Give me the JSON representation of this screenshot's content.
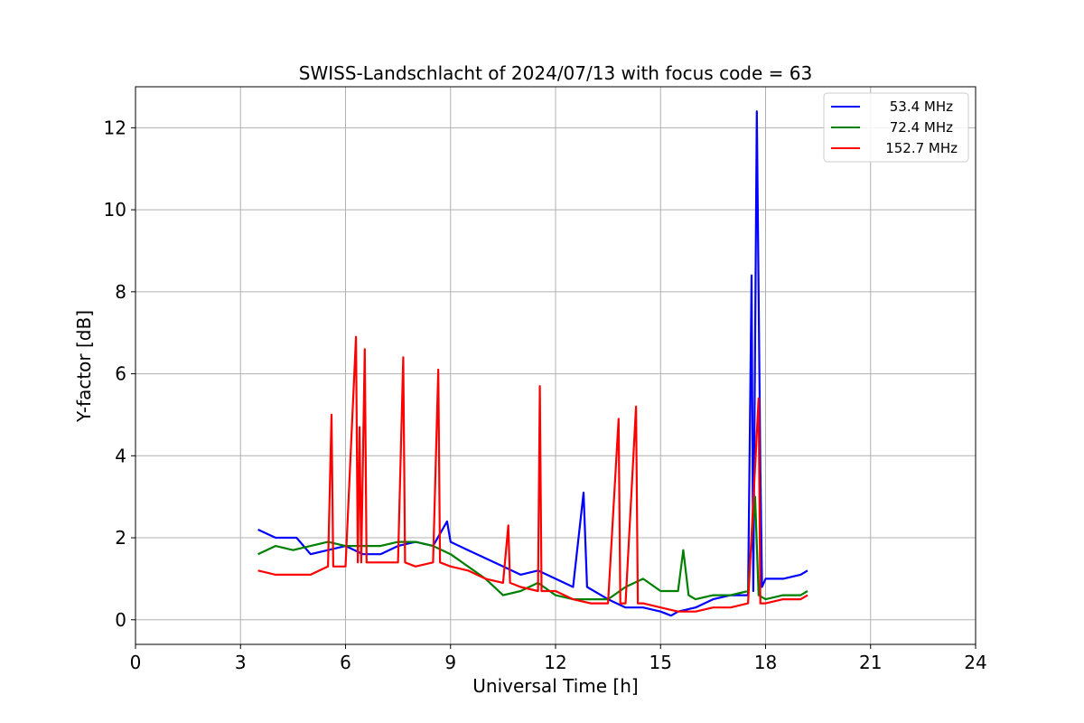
{
  "chart_data": {
    "type": "line",
    "title": "SWISS-Landschlacht of 2024/07/13 with focus code = 63",
    "xlabel": "Universal Time [h]",
    "ylabel": "Y-factor [dB]",
    "xlim": [
      0,
      24
    ],
    "ylim": [
      -0.6,
      13.0
    ],
    "xticks": [
      0,
      3,
      6,
      9,
      12,
      15,
      18,
      21,
      24
    ],
    "yticks": [
      0,
      2,
      4,
      6,
      8,
      10,
      12
    ],
    "grid": true,
    "legend_position": "top-right",
    "series": [
      {
        "name": "53.4 MHz",
        "color": "#0000ff",
        "points": [
          [
            3.5,
            2.2
          ],
          [
            4.0,
            2.0
          ],
          [
            4.6,
            2.0
          ],
          [
            5.0,
            1.6
          ],
          [
            5.5,
            1.7
          ],
          [
            6.0,
            1.8
          ],
          [
            6.5,
            1.6
          ],
          [
            7.0,
            1.6
          ],
          [
            7.5,
            1.8
          ],
          [
            8.0,
            1.9
          ],
          [
            8.5,
            1.8
          ],
          [
            8.9,
            2.4
          ],
          [
            9.0,
            1.9
          ],
          [
            9.5,
            1.7
          ],
          [
            10.0,
            1.5
          ],
          [
            10.5,
            1.3
          ],
          [
            11.0,
            1.1
          ],
          [
            11.5,
            1.2
          ],
          [
            12.0,
            1.0
          ],
          [
            12.5,
            0.8
          ],
          [
            12.8,
            3.1
          ],
          [
            12.9,
            0.8
          ],
          [
            13.5,
            0.5
          ],
          [
            14.0,
            0.3
          ],
          [
            14.5,
            0.3
          ],
          [
            15.0,
            0.2
          ],
          [
            15.3,
            0.1
          ],
          [
            15.5,
            0.2
          ],
          [
            16.0,
            0.3
          ],
          [
            16.5,
            0.5
          ],
          [
            17.0,
            0.6
          ],
          [
            17.5,
            0.6
          ],
          [
            17.6,
            8.4
          ],
          [
            17.65,
            0.7
          ],
          [
            17.75,
            12.4
          ],
          [
            17.85,
            3.7
          ],
          [
            17.9,
            0.8
          ],
          [
            18.0,
            1.0
          ],
          [
            18.5,
            1.0
          ],
          [
            19.0,
            1.1
          ],
          [
            19.2,
            1.2
          ]
        ]
      },
      {
        "name": "72.4 MHz",
        "color": "#008000",
        "points": [
          [
            3.5,
            1.6
          ],
          [
            4.0,
            1.8
          ],
          [
            4.5,
            1.7
          ],
          [
            5.0,
            1.8
          ],
          [
            5.5,
            1.9
          ],
          [
            6.0,
            1.8
          ],
          [
            6.5,
            1.8
          ],
          [
            7.0,
            1.8
          ],
          [
            7.5,
            1.9
          ],
          [
            8.0,
            1.9
          ],
          [
            8.5,
            1.8
          ],
          [
            9.0,
            1.6
          ],
          [
            9.5,
            1.3
          ],
          [
            10.0,
            1.0
          ],
          [
            10.5,
            0.6
          ],
          [
            11.0,
            0.7
          ],
          [
            11.5,
            0.9
          ],
          [
            12.0,
            0.6
          ],
          [
            12.5,
            0.5
          ],
          [
            13.0,
            0.5
          ],
          [
            13.5,
            0.5
          ],
          [
            14.0,
            0.8
          ],
          [
            14.5,
            1.0
          ],
          [
            15.0,
            0.7
          ],
          [
            15.5,
            0.7
          ],
          [
            15.65,
            1.7
          ],
          [
            15.8,
            0.6
          ],
          [
            16.0,
            0.5
          ],
          [
            16.5,
            0.6
          ],
          [
            17.0,
            0.6
          ],
          [
            17.5,
            0.7
          ],
          [
            17.6,
            2.0
          ],
          [
            17.7,
            3.0
          ],
          [
            17.8,
            0.6
          ],
          [
            18.0,
            0.5
          ],
          [
            18.5,
            0.6
          ],
          [
            19.0,
            0.6
          ],
          [
            19.2,
            0.7
          ]
        ]
      },
      {
        "name": "152.7 MHz",
        "color": "#ff0000",
        "points": [
          [
            3.5,
            1.2
          ],
          [
            4.0,
            1.1
          ],
          [
            4.5,
            1.1
          ],
          [
            5.0,
            1.1
          ],
          [
            5.5,
            1.3
          ],
          [
            5.6,
            5.0
          ],
          [
            5.65,
            1.3
          ],
          [
            6.0,
            1.3
          ],
          [
            6.3,
            6.9
          ],
          [
            6.35,
            1.4
          ],
          [
            6.4,
            4.7
          ],
          [
            6.45,
            1.4
          ],
          [
            6.55,
            6.6
          ],
          [
            6.6,
            1.4
          ],
          [
            7.0,
            1.4
          ],
          [
            7.5,
            1.4
          ],
          [
            7.65,
            6.4
          ],
          [
            7.7,
            1.4
          ],
          [
            8.0,
            1.3
          ],
          [
            8.5,
            1.4
          ],
          [
            8.65,
            6.1
          ],
          [
            8.7,
            1.4
          ],
          [
            9.0,
            1.3
          ],
          [
            9.5,
            1.2
          ],
          [
            10.0,
            1.0
          ],
          [
            10.5,
            0.9
          ],
          [
            10.65,
            2.3
          ],
          [
            10.7,
            0.9
          ],
          [
            11.0,
            0.8
          ],
          [
            11.5,
            0.7
          ],
          [
            11.55,
            5.7
          ],
          [
            11.6,
            0.7
          ],
          [
            12.0,
            0.7
          ],
          [
            12.5,
            0.5
          ],
          [
            13.0,
            0.4
          ],
          [
            13.5,
            0.4
          ],
          [
            13.8,
            4.9
          ],
          [
            13.85,
            0.4
          ],
          [
            14.0,
            0.4
          ],
          [
            14.3,
            5.2
          ],
          [
            14.35,
            0.4
          ],
          [
            14.5,
            0.4
          ],
          [
            15.0,
            0.3
          ],
          [
            15.5,
            0.2
          ],
          [
            16.0,
            0.2
          ],
          [
            16.5,
            0.3
          ],
          [
            17.0,
            0.3
          ],
          [
            17.5,
            0.4
          ],
          [
            17.8,
            5.4
          ],
          [
            17.85,
            0.4
          ],
          [
            18.0,
            0.4
          ],
          [
            18.5,
            0.5
          ],
          [
            19.0,
            0.5
          ],
          [
            19.2,
            0.6
          ]
        ]
      }
    ]
  }
}
